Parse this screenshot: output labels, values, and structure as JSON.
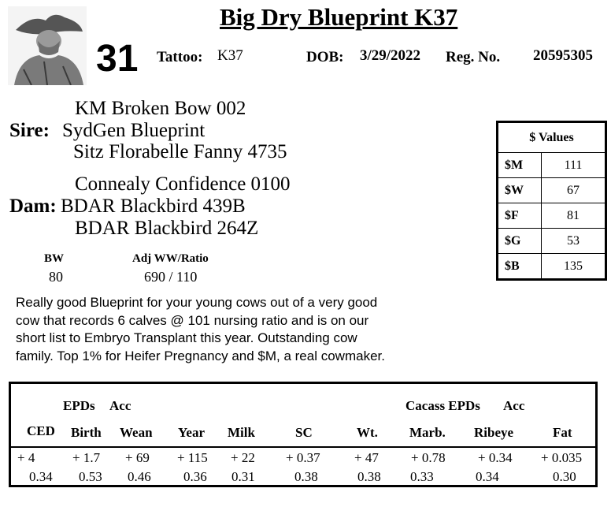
{
  "header": {
    "title": "Big Dry Blueprint K37",
    "lot_number": "31",
    "tattoo_label": "Tattoo:",
    "tattoo_value": "K37",
    "dob_label": "DOB:",
    "dob_value": "3/29/2022",
    "reg_label": "Reg. No.",
    "reg_value": "20595305"
  },
  "pedigree": {
    "sire_label": "Sire:",
    "sire_sire": "KM Broken Bow 002",
    "sire": "SydGen Blueprint",
    "sire_dam": "Sitz Florabelle Fanny 4735",
    "dam_label": "Dam:",
    "dam_sire": "Connealy Confidence 0100",
    "dam": "BDAR Blackbird 439B",
    "dam_dam": "BDAR Blackbird 264Z"
  },
  "performance": {
    "bw_label": "BW",
    "bw_value": "80",
    "ww_label": "Adj WW/Ratio",
    "ww_value": "690 / 110"
  },
  "dollar_values": {
    "header": "$ Values",
    "rows": [
      {
        "label": "$M",
        "value": "111"
      },
      {
        "label": "$W",
        "value": "67"
      },
      {
        "label": "$F",
        "value": "81"
      },
      {
        "label": "$G",
        "value": "53"
      },
      {
        "label": "$B",
        "value": "135"
      }
    ]
  },
  "description": "Really good Blueprint for your young cows out of a very good cow that records 6 calves @ 101 nursing ratio and is on our short list to Embryo Transplant this year. Outstanding cow family.   Top 1% for Heifer Pregnancy and $M, a real cowmaker.",
  "epds": {
    "group1_label": "EPDs",
    "group1_acc": "Acc",
    "group2_label": "Cacass EPDs",
    "group2_acc": "Acc",
    "columns": [
      {
        "name": "CED",
        "epd": "+ 4",
        "acc": "0.34"
      },
      {
        "name": "Birth",
        "epd": "+ 1.7",
        "acc": "0.53"
      },
      {
        "name": "Wean",
        "epd": "+ 69",
        "acc": "0.46"
      },
      {
        "name": "Year",
        "epd": "+ 115",
        "acc": "0.36"
      },
      {
        "name": "Milk",
        "epd": "+ 22",
        "acc": "0.31"
      },
      {
        "name": "SC",
        "epd": "+ 0.37",
        "acc": "0.38"
      },
      {
        "name": "Wt.",
        "epd": "+ 47",
        "acc": "0.38"
      },
      {
        "name": "Marb.",
        "epd": "+ 0.78",
        "acc": "0.33"
      },
      {
        "name": "Ribeye",
        "epd": "+ 0.34",
        "acc": "0.34"
      },
      {
        "name": "Fat",
        "epd": "+ 0.035",
        "acc": "0.30"
      }
    ]
  }
}
